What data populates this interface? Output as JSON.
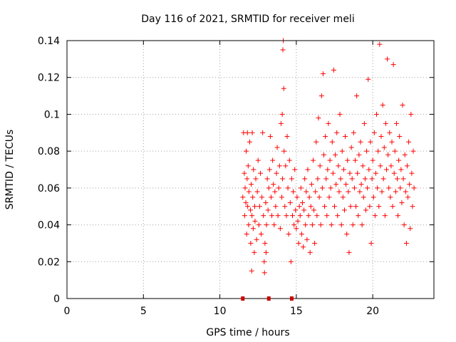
{
  "chart_data": {
    "type": "scatter",
    "title": "Day 116 of 2021, SRMTID for receiver meli",
    "xlabel": "GPS time / hours",
    "ylabel": "SRMTID / TECUs",
    "xlim": [
      0,
      24
    ],
    "ylim": [
      0,
      0.14
    ],
    "x_ticks": [
      "0",
      "5",
      "10",
      "15",
      "20"
    ],
    "y_ticks": [
      "0",
      "0.02",
      "0.04",
      "0.06",
      "0.08",
      "0.1",
      "0.12",
      "0.14"
    ],
    "grid": true,
    "marker": "plus",
    "colors": {
      "points": "#ff0000",
      "zero_marks": "#cc0000"
    },
    "zero_marks_x": [
      11.5,
      13.2,
      14.7
    ],
    "series": [
      {
        "points": [
          [
            11.5,
            0.055
          ],
          [
            11.55,
            0.09
          ],
          [
            11.6,
            0.068
          ],
          [
            11.62,
            0.045
          ],
          [
            11.65,
            0.06
          ],
          [
            11.7,
            0.052
          ],
          [
            11.72,
            0.08
          ],
          [
            11.75,
            0.035
          ],
          [
            11.78,
            0.065
          ],
          [
            11.8,
            0.09
          ],
          [
            11.82,
            0.05
          ],
          [
            11.85,
            0.072
          ],
          [
            11.88,
            0.04
          ],
          [
            11.9,
            0.058
          ],
          [
            11.95,
            0.085
          ],
          [
            12.0,
            0.048
          ],
          [
            12.02,
            0.03
          ],
          [
            12.05,
            0.062
          ],
          [
            12.08,
            0.015
          ],
          [
            12.1,
            0.045
          ],
          [
            12.12,
            0.09
          ],
          [
            12.15,
            0.055
          ],
          [
            12.18,
            0.038
          ],
          [
            12.2,
            0.07
          ],
          [
            12.25,
            0.025
          ],
          [
            12.28,
            0.05
          ],
          [
            12.3,
            0.042
          ],
          [
            12.35,
            0.065
          ],
          [
            12.4,
            0.032
          ],
          [
            12.45,
            0.058
          ],
          [
            12.5,
            0.075
          ],
          [
            12.55,
            0.04
          ],
          [
            12.6,
            0.05
          ],
          [
            12.65,
            0.068
          ],
          [
            12.7,
            0.035
          ],
          [
            12.75,
            0.055
          ],
          [
            12.8,
            0.09
          ],
          [
            12.85,
            0.045
          ],
          [
            12.9,
            0.02
          ],
          [
            12.92,
            0.014
          ],
          [
            12.95,
            0.03
          ],
          [
            13.0,
            0.052
          ],
          [
            13.02,
            0.025
          ],
          [
            13.05,
            0.04
          ],
          [
            13.1,
            0.065
          ],
          [
            13.15,
            0.048
          ],
          [
            13.2,
            0.06
          ],
          [
            13.25,
            0.07
          ],
          [
            13.3,
            0.088
          ],
          [
            13.35,
            0.055
          ],
          [
            13.4,
            0.045
          ],
          [
            13.45,
            0.075
          ],
          [
            13.5,
            0.062
          ],
          [
            13.55,
            0.04
          ],
          [
            13.6,
            0.058
          ],
          [
            13.65,
            0.05
          ],
          [
            13.7,
            0.068
          ],
          [
            13.75,
            0.082
          ],
          [
            13.8,
            0.045
          ],
          [
            13.85,
            0.06
          ],
          [
            13.9,
            0.072
          ],
          [
            13.95,
            0.038
          ],
          [
            14.0,
            0.095
          ],
          [
            14.05,
            0.055
          ],
          [
            14.08,
            0.1
          ],
          [
            14.1,
            0.065
          ],
          [
            14.12,
            0.135
          ],
          [
            14.15,
            0.14
          ],
          [
            14.18,
            0.114
          ],
          [
            14.2,
            0.08
          ],
          [
            14.25,
            0.05
          ],
          [
            14.3,
            0.072
          ],
          [
            14.35,
            0.045
          ],
          [
            14.4,
            0.088
          ],
          [
            14.45,
            0.06
          ],
          [
            14.5,
            0.035
          ],
          [
            14.55,
            0.075
          ],
          [
            14.6,
            0.052
          ],
          [
            14.65,
            0.02
          ],
          [
            14.7,
            0.065
          ],
          [
            14.75,
            0.045
          ],
          [
            14.8,
            0.058
          ],
          [
            14.85,
            0.04
          ],
          [
            14.9,
            0.07
          ],
          [
            14.95,
            0.048
          ],
          [
            15.0,
            0.038
          ],
          [
            15.05,
            0.055
          ],
          [
            15.1,
            0.042
          ],
          [
            15.15,
            0.03
          ],
          [
            15.2,
            0.05
          ],
          [
            15.25,
            0.045
          ],
          [
            15.3,
            0.06
          ],
          [
            15.35,
            0.035
          ],
          [
            15.4,
            0.052
          ],
          [
            15.45,
            0.028
          ],
          [
            15.5,
            0.048
          ],
          [
            15.55,
            0.065
          ],
          [
            15.6,
            0.04
          ],
          [
            15.65,
            0.058
          ],
          [
            15.7,
            0.032
          ],
          [
            15.75,
            0.07
          ],
          [
            15.8,
            0.045
          ],
          [
            15.85,
            0.055
          ],
          [
            15.9,
            0.025
          ],
          [
            15.95,
            0.05
          ],
          [
            16.0,
            0.062
          ],
          [
            16.05,
            0.04
          ],
          [
            16.1,
            0.075
          ],
          [
            16.15,
            0.048
          ],
          [
            16.2,
            0.03
          ],
          [
            16.25,
            0.058
          ],
          [
            16.3,
            0.085
          ],
          [
            16.35,
            0.045
          ],
          [
            16.4,
            0.065
          ],
          [
            16.45,
            0.098
          ],
          [
            16.5,
            0.055
          ],
          [
            16.55,
            0.072
          ],
          [
            16.6,
            0.04
          ],
          [
            16.65,
            0.11
          ],
          [
            16.7,
            0.06
          ],
          [
            16.75,
            0.122
          ],
          [
            16.8,
            0.078
          ],
          [
            16.85,
            0.05
          ],
          [
            16.9,
            0.088
          ],
          [
            16.95,
            0.065
          ],
          [
            17.0,
            0.045
          ],
          [
            17.05,
            0.07
          ],
          [
            17.1,
            0.095
          ],
          [
            17.15,
            0.055
          ],
          [
            17.2,
            0.075
          ],
          [
            17.25,
            0.06
          ],
          [
            17.3,
            0.04
          ],
          [
            17.35,
            0.085
          ],
          [
            17.4,
            0.068
          ],
          [
            17.45,
            0.124
          ],
          [
            17.5,
            0.05
          ],
          [
            17.55,
            0.078
          ],
          [
            17.6,
            0.062
          ],
          [
            17.65,
            0.09
          ],
          [
            17.7,
            0.045
          ],
          [
            17.75,
            0.072
          ],
          [
            17.8,
            0.058
          ],
          [
            17.85,
            0.1
          ],
          [
            17.9,
            0.065
          ],
          [
            17.95,
            0.04
          ],
          [
            18.0,
            0.08
          ],
          [
            18.05,
            0.055
          ],
          [
            18.1,
            0.07
          ],
          [
            18.15,
            0.048
          ],
          [
            18.2,
            0.088
          ],
          [
            18.25,
            0.062
          ],
          [
            18.3,
            0.035
          ],
          [
            18.35,
            0.075
          ],
          [
            18.4,
            0.058
          ],
          [
            18.45,
            0.025
          ],
          [
            18.5,
            0.068
          ],
          [
            18.55,
            0.05
          ],
          [
            18.6,
            0.082
          ],
          [
            18.65,
            0.065
          ],
          [
            18.7,
            0.04
          ],
          [
            18.75,
            0.09
          ],
          [
            18.8,
            0.06
          ],
          [
            18.85,
            0.075
          ],
          [
            18.9,
            0.05
          ],
          [
            18.95,
            0.11
          ],
          [
            19.0,
            0.068
          ],
          [
            19.05,
            0.045
          ],
          [
            19.1,
            0.078
          ],
          [
            19.15,
            0.058
          ],
          [
            19.2,
            0.085
          ],
          [
            19.25,
            0.062
          ],
          [
            19.3,
            0.04
          ],
          [
            19.35,
            0.072
          ],
          [
            19.4,
            0.055
          ],
          [
            19.45,
            0.095
          ],
          [
            19.5,
            0.065
          ],
          [
            19.55,
            0.048
          ],
          [
            19.6,
            0.08
          ],
          [
            19.65,
            0.06
          ],
          [
            19.7,
            0.119
          ],
          [
            19.75,
            0.07
          ],
          [
            19.8,
            0.05
          ],
          [
            19.85,
            0.085
          ],
          [
            19.9,
            0.03
          ],
          [
            19.95,
            0.065
          ],
          [
            20.0,
            0.075
          ],
          [
            20.05,
            0.055
          ],
          [
            20.1,
            0.09
          ],
          [
            20.15,
            0.045
          ],
          [
            20.2,
            0.068
          ],
          [
            20.25,
            0.1
          ],
          [
            20.3,
            0.06
          ],
          [
            20.35,
            0.08
          ],
          [
            20.4,
            0.05
          ],
          [
            20.45,
            0.138
          ],
          [
            20.5,
            0.072
          ],
          [
            20.55,
            0.088
          ],
          [
            20.6,
            0.058
          ],
          [
            20.65,
            0.105
          ],
          [
            20.7,
            0.065
          ],
          [
            20.75,
            0.082
          ],
          [
            20.8,
            0.045
          ],
          [
            20.85,
            0.095
          ],
          [
            20.9,
            0.07
          ],
          [
            20.95,
            0.13
          ],
          [
            21.0,
            0.078
          ],
          [
            21.05,
            0.06
          ],
          [
            21.1,
            0.09
          ],
          [
            21.15,
            0.055
          ],
          [
            21.2,
            0.072
          ],
          [
            21.25,
            0.085
          ],
          [
            21.3,
            0.05
          ],
          [
            21.35,
            0.127
          ],
          [
            21.4,
            0.068
          ],
          [
            21.45,
            0.08
          ],
          [
            21.5,
            0.058
          ],
          [
            21.55,
            0.095
          ],
          [
            21.6,
            0.065
          ],
          [
            21.65,
            0.045
          ],
          [
            21.7,
            0.075
          ],
          [
            21.75,
            0.088
          ],
          [
            21.8,
            0.06
          ],
          [
            21.85,
            0.07
          ],
          [
            21.9,
            0.052
          ],
          [
            21.95,
            0.105
          ],
          [
            22.0,
            0.065
          ],
          [
            22.05,
            0.04
          ],
          [
            22.1,
            0.078
          ],
          [
            22.15,
            0.058
          ],
          [
            22.2,
            0.03
          ],
          [
            22.25,
            0.072
          ],
          [
            22.3,
            0.055
          ],
          [
            22.35,
            0.085
          ],
          [
            22.4,
            0.062
          ],
          [
            22.45,
            0.038
          ],
          [
            22.5,
            0.1
          ],
          [
            22.55,
            0.068
          ],
          [
            22.6,
            0.05
          ],
          [
            22.65,
            0.08
          ],
          [
            22.7,
            0.06
          ]
        ]
      }
    ]
  }
}
